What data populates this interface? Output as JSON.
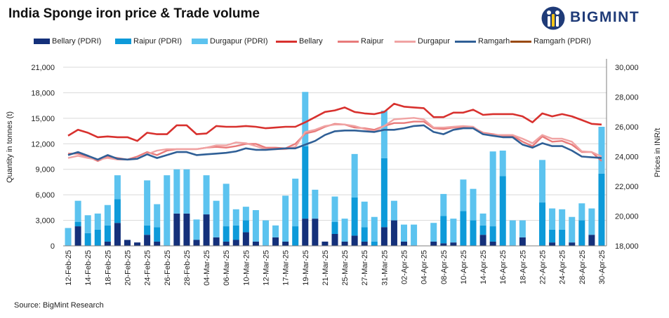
{
  "title": "India Sponge iron price & Trade volume",
  "brand": {
    "name": "BIGMINT"
  },
  "source": "Source: BigMint Research",
  "colors": {
    "bellary_bar": "#14307a",
    "raipur_bar": "#0d9ad9",
    "durgapur_bar": "#5cc3ef",
    "bellary_line": "#d8312e",
    "raipur_line": "#e87a7a",
    "durgapur_line": "#f0a3a3",
    "ramgarh_line": "#2f5f96",
    "ramgarh_pdri_line": "#9a4a12"
  },
  "chart_data": {
    "type": "bar+line",
    "title": "India Sponge iron price & Trade volume",
    "ylabel": "Quantity in tonnes (t)",
    "y2label": "Prices in INR/t",
    "ylim": [
      0,
      21000
    ],
    "yticks": [
      0,
      3000,
      6000,
      9000,
      12000,
      15000,
      18000,
      21000
    ],
    "yticklabels": [
      "0",
      "3,000",
      "6,000",
      "9,000",
      "12,000",
      "15,000",
      "18,000",
      "21,000"
    ],
    "y2lim": [
      18000,
      30000
    ],
    "y2ticks": [
      18000,
      20000,
      22000,
      24000,
      26000,
      28000,
      30000
    ],
    "y2ticklabels": [
      "18,000",
      "20,000",
      "22,000",
      "24,000",
      "26,000",
      "28,000",
      "30,000"
    ],
    "grid": true,
    "legend_position": "top",
    "x_tick_labels": [
      "12-Feb-25",
      "14-Feb-25",
      "18-Feb-25",
      "20-Feb-25",
      "24-Feb-25",
      "26-Feb-25",
      "28-Feb-25",
      "04-Mar-25",
      "06-Mar-25",
      "10-Mar-25",
      "12-Mar-25",
      "17-Mar-25",
      "19-Mar-25",
      "21-Mar-25",
      "25-Mar-25",
      "27-Mar-25",
      "31-Mar-25",
      "02-Apr-25",
      "04-Apr-25",
      "08-Apr-25",
      "10-Apr-25",
      "14-Apr-25",
      "16-Apr-25",
      "18-Apr-25",
      "22-Apr-25",
      "24-Apr-25",
      "28-Apr-25",
      "30-Apr-25"
    ],
    "categories": [
      "12-Feb-25",
      "13-Feb-25",
      "14-Feb-25",
      "17-Feb-25",
      "18-Feb-25",
      "19-Feb-25",
      "20-Feb-25",
      "21-Feb-25",
      "24-Feb-25",
      "25-Feb-25",
      "26-Feb-25",
      "27-Feb-25",
      "28-Feb-25",
      "03-Mar-25",
      "04-Mar-25",
      "05-Mar-25",
      "06-Mar-25",
      "07-Mar-25",
      "10-Mar-25",
      "11-Mar-25",
      "12-Mar-25",
      "13-Mar-25",
      "17-Mar-25",
      "18-Mar-25",
      "19-Mar-25",
      "20-Mar-25",
      "21-Mar-25",
      "24-Mar-25",
      "25-Mar-25",
      "26-Mar-25",
      "27-Mar-25",
      "28-Mar-25",
      "31-Mar-25",
      "01-Apr-25",
      "02-Apr-25",
      "03-Apr-25",
      "04-Apr-25",
      "07-Apr-25",
      "08-Apr-25",
      "09-Apr-25",
      "10-Apr-25",
      "11-Apr-25",
      "14-Apr-25",
      "15-Apr-25",
      "16-Apr-25",
      "17-Apr-25",
      "18-Apr-25",
      "21-Apr-25",
      "22-Apr-25",
      "23-Apr-25",
      "24-Apr-25",
      "25-Apr-25",
      "28-Apr-25",
      "29-Apr-25",
      "30-Apr-25"
    ],
    "bar_series": [
      {
        "key": "bellary_bar",
        "name": "Bellary (PDRI)",
        "values": [
          0,
          2300,
          0,
          0,
          500,
          2700,
          700,
          400,
          1300,
          500,
          0,
          3800,
          3800,
          700,
          3700,
          1000,
          500,
          700,
          1600,
          500,
          0,
          1000,
          500,
          0,
          3200,
          3200,
          500,
          1400,
          500,
          1200,
          500,
          0,
          2200,
          3000,
          500,
          0,
          0,
          500,
          300,
          400,
          0,
          0,
          1300,
          500,
          0,
          0,
          1000,
          0,
          0,
          400,
          0,
          400,
          0,
          1300,
          0
        ]
      },
      {
        "key": "raipur_bar",
        "name": "Raipur (PDRI)",
        "values": [
          0,
          500,
          1500,
          1900,
          1900,
          2800,
          0,
          0,
          1100,
          1700,
          0,
          0,
          0,
          0,
          0,
          0,
          1800,
          1700,
          1400,
          0,
          0,
          0,
          0,
          2300,
          8500,
          0,
          0,
          1400,
          0,
          4500,
          1700,
          500,
          8100,
          0,
          0,
          0,
          0,
          0,
          3200,
          0,
          4100,
          3000,
          1100,
          1800,
          8200,
          0,
          0,
          0,
          5100,
          1500,
          1900,
          0,
          3000,
          0,
          8500
        ]
      },
      {
        "key": "durgapur_bar",
        "name": "Durgapur (PDRI)",
        "values": [
          2100,
          2500,
          2100,
          1900,
          2400,
          2800,
          0,
          0,
          5300,
          2700,
          8300,
          5200,
          5200,
          2400,
          4600,
          4300,
          5000,
          1900,
          1600,
          3700,
          3000,
          1400,
          5400,
          5600,
          6400,
          3400,
          0,
          3000,
          2700,
          5100,
          3000,
          2900,
          5600,
          2300,
          2000,
          2500,
          0,
          2200,
          2600,
          2800,
          3700,
          3700,
          1400,
          8800,
          3000,
          3000,
          2000,
          0,
          5000,
          2500,
          2400,
          3000,
          2000,
          3100,
          5500
        ]
      }
    ],
    "line_series": [
      {
        "key": "bellary_line",
        "name": "Bellary",
        "width": 2.6,
        "values": [
          25400,
          25800,
          25600,
          25300,
          25350,
          25300,
          25300,
          25050,
          25600,
          25500,
          25500,
          26100,
          26100,
          25500,
          25550,
          26050,
          26000,
          26000,
          26050,
          26000,
          25900,
          25950,
          26000,
          26000,
          26300,
          26650,
          27000,
          27100,
          27300,
          27000,
          26900,
          26850,
          27000,
          27550,
          27350,
          27300,
          27250,
          26650,
          26650,
          26950,
          26950,
          27150,
          26800,
          26850,
          26850,
          26850,
          26700,
          26300,
          26900,
          26700,
          26850,
          26700,
          26450,
          26200,
          26150
        ]
      },
      {
        "key": "raipur_line",
        "name": "Raipur",
        "width": 2.4,
        "values": [
          24200,
          24200,
          24000,
          23700,
          24000,
          23900,
          23800,
          24000,
          24300,
          24100,
          24400,
          24500,
          24500,
          24500,
          24600,
          24650,
          24600,
          24700,
          24850,
          24850,
          24600,
          24600,
          24550,
          24850,
          25550,
          25700,
          26000,
          26200,
          26150,
          25950,
          25900,
          25800,
          26050,
          26250,
          26250,
          26350,
          26350,
          25900,
          25850,
          25950,
          25950,
          25950,
          25600,
          25500,
          25400,
          25400,
          25000,
          24700,
          25350,
          25000,
          25050,
          24800,
          24300,
          24300,
          23700
        ]
      },
      {
        "key": "durgapur_line",
        "name": "Durgapur",
        "width": 2.4,
        "values": [
          23900,
          24050,
          23900,
          23800,
          23900,
          23800,
          23800,
          23850,
          24150,
          24400,
          24500,
          24500,
          24500,
          24500,
          24600,
          24750,
          24750,
          24950,
          24900,
          24700,
          24500,
          24500,
          24500,
          24650,
          25650,
          25800,
          26050,
          26150,
          26150,
          26050,
          25850,
          25700,
          26050,
          26500,
          26550,
          26600,
          26500,
          25950,
          25950,
          26000,
          26050,
          26000,
          25550,
          25450,
          25450,
          25450,
          25200,
          24900,
          25450,
          25200,
          25200,
          25000,
          24350,
          24300,
          24000
        ]
      },
      {
        "key": "ramgarh_line",
        "name": "Ramgarh",
        "width": 2.6,
        "values": [
          24100,
          24300,
          24050,
          23800,
          24100,
          23850,
          23800,
          23850,
          24150,
          23900,
          24100,
          24300,
          24300,
          24100,
          24150,
          24200,
          24250,
          24350,
          24550,
          24450,
          24450,
          24500,
          24550,
          24550,
          24800,
          25050,
          25450,
          25700,
          25750,
          25750,
          25700,
          25650,
          25800,
          25800,
          25900,
          26050,
          26100,
          25650,
          25500,
          25800,
          25900,
          25900,
          25500,
          25400,
          25300,
          25300,
          24800,
          24600,
          24900,
          24700,
          24700,
          24400,
          24000,
          23950,
          23900
        ]
      },
      {
        "key": "ramgarh_pdri_line",
        "name": "Ramgarh (PDRI)",
        "width": 2.4,
        "values": []
      }
    ]
  }
}
